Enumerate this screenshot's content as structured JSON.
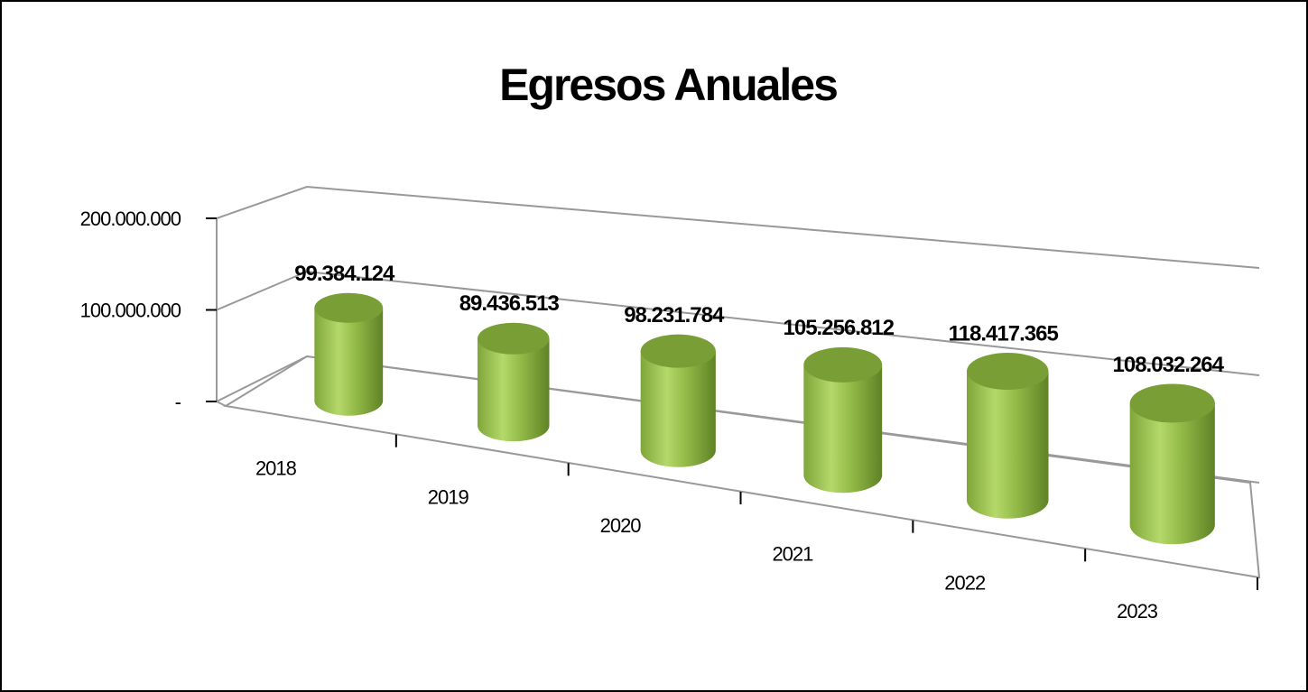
{
  "chart_data": {
    "type": "cylinder",
    "title": "Egresos Anuales",
    "categories": [
      "2018",
      "2019",
      "2020",
      "2021",
      "2022",
      "2023"
    ],
    "values": [
      99384124,
      89436513,
      98231784,
      105256812,
      118417365,
      108032264
    ],
    "value_labels": [
      "99.384.124",
      "89.436.513",
      "98.231.784",
      "105.256.812",
      "118.417.365",
      "108.032.264"
    ],
    "color": "#8db543",
    "ylim": [
      0,
      200000000
    ],
    "yticks": [
      {
        "value": 0,
        "label": "-"
      },
      {
        "value": 100000000,
        "label": "100.000.000"
      },
      {
        "value": 200000000,
        "label": "200.000.000"
      }
    ],
    "grid": true
  }
}
